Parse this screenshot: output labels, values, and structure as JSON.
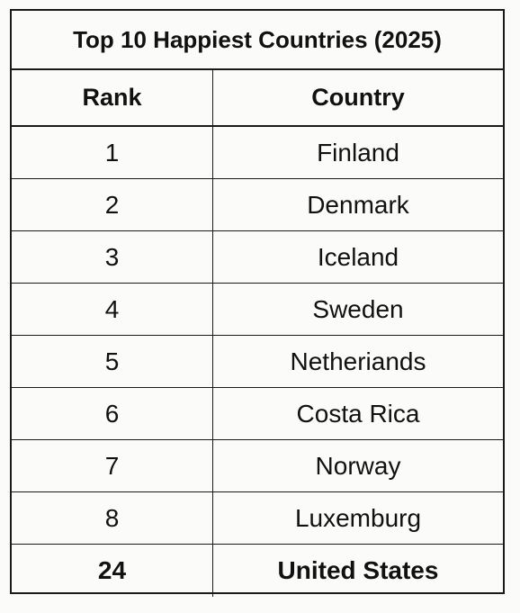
{
  "table": {
    "title": "Top 10 Happiest Countries (2025)",
    "headers": {
      "rank": "Rank",
      "country": "Country"
    },
    "rows": [
      {
        "rank": "1",
        "country": "Finland"
      },
      {
        "rank": "2",
        "country": "Denmark"
      },
      {
        "rank": "3",
        "country": "Iceland"
      },
      {
        "rank": "4",
        "country": "Sweden"
      },
      {
        "rank": "5",
        "country": "Netheriands"
      },
      {
        "rank": "6",
        "country": "Costa Rica"
      },
      {
        "rank": "7",
        "country": "Norway"
      },
      {
        "rank": "8",
        "country": "Luxemburg"
      },
      {
        "rank": "24",
        "country": "United States"
      }
    ]
  }
}
